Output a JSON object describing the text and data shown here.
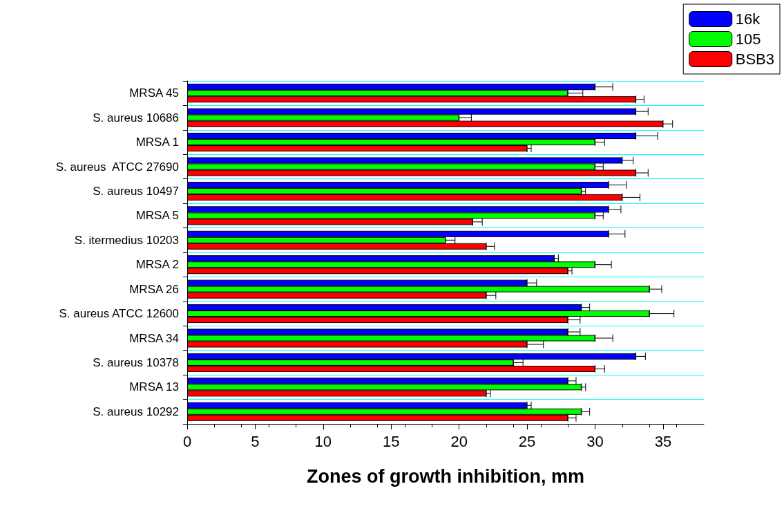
{
  "chart_data": {
    "type": "bar",
    "orientation": "horizontal",
    "xlabel": "Zones of growth inhibition, mm",
    "categories": [
      "MRSA 45",
      "S. aureus 10686",
      "MRSA 1",
      "S. aureus  ATCC 27690",
      "S. aureus 10497",
      "MRSA 5",
      "S. itermedius 10203",
      "MRSA 2",
      "MRSA 26",
      "S. aureus ATCC 12600",
      "MRSA 34",
      "S. aureus 10378",
      "MRSA 13",
      "S. aureus 10292"
    ],
    "series": [
      {
        "name": "16k",
        "color": "#0000ff",
        "values": [
          30,
          33,
          33,
          32,
          31,
          31,
          31,
          27,
          25,
          29,
          28,
          33,
          28,
          25
        ],
        "errors": [
          [
            30,
            31.3
          ],
          [
            33,
            33.9
          ],
          [
            33,
            34.6
          ],
          [
            32,
            32.8
          ],
          [
            31,
            32.3
          ],
          [
            31,
            31.9
          ],
          [
            31,
            32.2
          ],
          [
            27,
            27.3
          ],
          [
            25,
            25.7
          ],
          [
            29,
            29.6
          ],
          [
            28,
            28.9
          ],
          [
            33,
            33.7
          ],
          [
            28,
            28.6
          ],
          [
            25,
            25.3
          ]
        ]
      },
      {
        "name": "105",
        "color": "#00ff00",
        "values": [
          28,
          20,
          30,
          30,
          29,
          30,
          19,
          30,
          34,
          34,
          30,
          24,
          29,
          29
        ],
        "errors": [
          [
            28,
            29.1
          ],
          [
            20,
            20.9
          ],
          [
            30,
            30.7
          ],
          [
            30,
            30.6
          ],
          [
            29,
            29.3
          ],
          [
            30,
            30.6
          ],
          [
            19,
            19.7
          ],
          [
            30,
            31.2
          ],
          [
            34,
            34.9
          ],
          [
            34,
            35.8
          ],
          [
            30,
            31.3
          ],
          [
            24,
            24.7
          ],
          [
            29,
            29.3
          ],
          [
            29,
            29.6
          ]
        ]
      },
      {
        "name": "BSB3",
        "color": "#ff0000",
        "values": [
          33,
          35,
          25,
          33,
          32,
          21,
          22,
          28,
          22,
          28,
          25,
          30,
          22,
          28
        ],
        "errors": [
          [
            33,
            33.6
          ],
          [
            35,
            35.7
          ],
          [
            25,
            25.3
          ],
          [
            33,
            33.9
          ],
          [
            32,
            33.3
          ],
          [
            21,
            21.7
          ],
          [
            22,
            22.6
          ],
          [
            28,
            28.3
          ],
          [
            22,
            22.7
          ],
          [
            28,
            28.9
          ],
          [
            25,
            26.2
          ],
          [
            30,
            30.7
          ],
          [
            22,
            22.3
          ],
          [
            28,
            28.6
          ]
        ]
      }
    ],
    "xlim": [
      0,
      38
    ],
    "xticks": [
      0,
      5,
      10,
      15,
      20,
      25,
      30,
      35
    ],
    "grid": "y",
    "legend": "top right"
  }
}
